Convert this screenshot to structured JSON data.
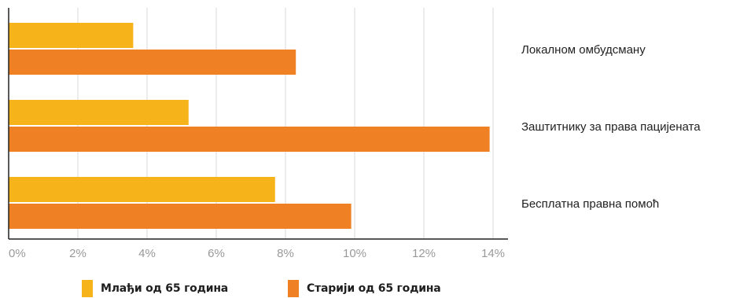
{
  "chart_data": {
    "type": "bar",
    "orientation": "horizontal",
    "categories": [
      "Локалном омбудсману",
      "Заштитнику за права пацијената",
      "Бесплатна правна помоћ"
    ],
    "series": [
      {
        "name": "Млађи од 65 година",
        "values": [
          3.6,
          5.2,
          7.7
        ],
        "color": "#f6b31a"
      },
      {
        "name": "Старији од 65 година",
        "values": [
          8.3,
          13.9,
          9.9
        ],
        "color": "#ef8124"
      }
    ],
    "xlim": [
      0,
      14
    ],
    "x_ticks": [
      0,
      2,
      4,
      6,
      8,
      10,
      12,
      14
    ],
    "tick_labels": [
      "0%",
      "2%",
      "4%",
      "6%",
      "8%",
      "10%",
      "12%",
      "14%"
    ],
    "grid": true,
    "legend_position": "bottom"
  }
}
